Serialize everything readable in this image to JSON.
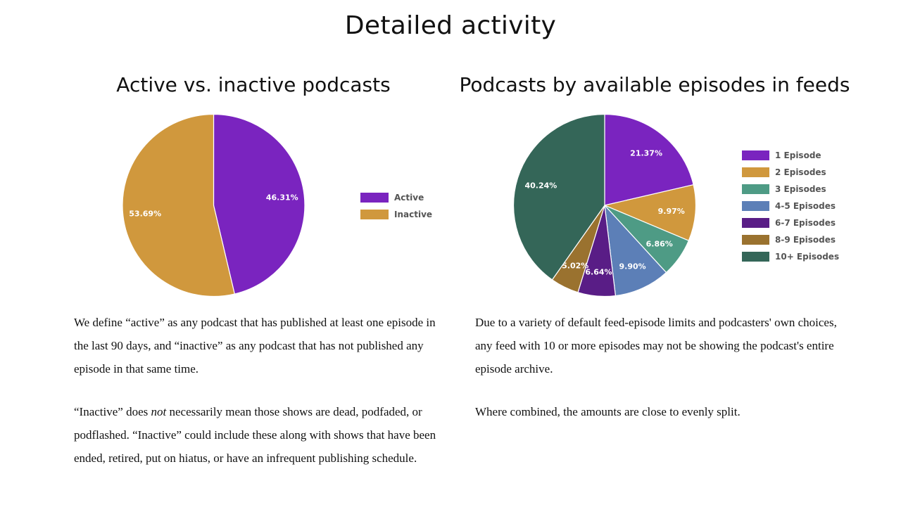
{
  "page_title": "Detailed activity",
  "paragraphs": {
    "left_1": "We define “active” as any podcast that has published at least one episode in the last 90 days, and “inactive” as any podcast that has not published any episode in that same time.",
    "left_2_a": "“Inactive” does ",
    "left_2_em": "not",
    "left_2_b": " necessarily mean those shows are dead, podfaded, or podflashed. “Inactive” could include these along with shows that have been ended, retired, put on hiatus, or have an infrequent publishing schedule.",
    "right_1": "Due to a variety of default feed-episode limits and podcasters' own choices, any feed with 10 or more episodes may not be showing the podcast's entire episode archive.",
    "right_2": "Where combined, the amounts are close to evenly split."
  },
  "chart_data": [
    {
      "type": "pie",
      "title": "Active vs. inactive podcasts",
      "categories": [
        "Active",
        "Inactive"
      ],
      "values": [
        46.31,
        53.69
      ],
      "labels": [
        "46.31%",
        "53.69%"
      ],
      "colors": [
        "#7a24bf",
        "#d0983d"
      ],
      "start": "top, clockwise",
      "legend": "right"
    },
    {
      "type": "pie",
      "title": "Podcasts by available episodes in feeds",
      "categories": [
        "1 Episode",
        "2 Episodes",
        "3 Episodes",
        "4-5 Episodes",
        "6-7 Episodes",
        "8-9 Episodes",
        "10+ Episodes"
      ],
      "values": [
        21.37,
        9.97,
        6.86,
        9.9,
        6.64,
        5.02,
        40.24
      ],
      "labels": [
        "21.37%",
        "9.97%",
        "6.86%",
        "9.90%",
        "6.64%",
        "5.02%",
        "40.24%"
      ],
      "colors": [
        "#7a24bf",
        "#d0983d",
        "#4e9b85",
        "#5c7fb7",
        "#591d86",
        "#9a722f",
        "#346658"
      ],
      "start": "top, clockwise",
      "legend": "right"
    }
  ]
}
